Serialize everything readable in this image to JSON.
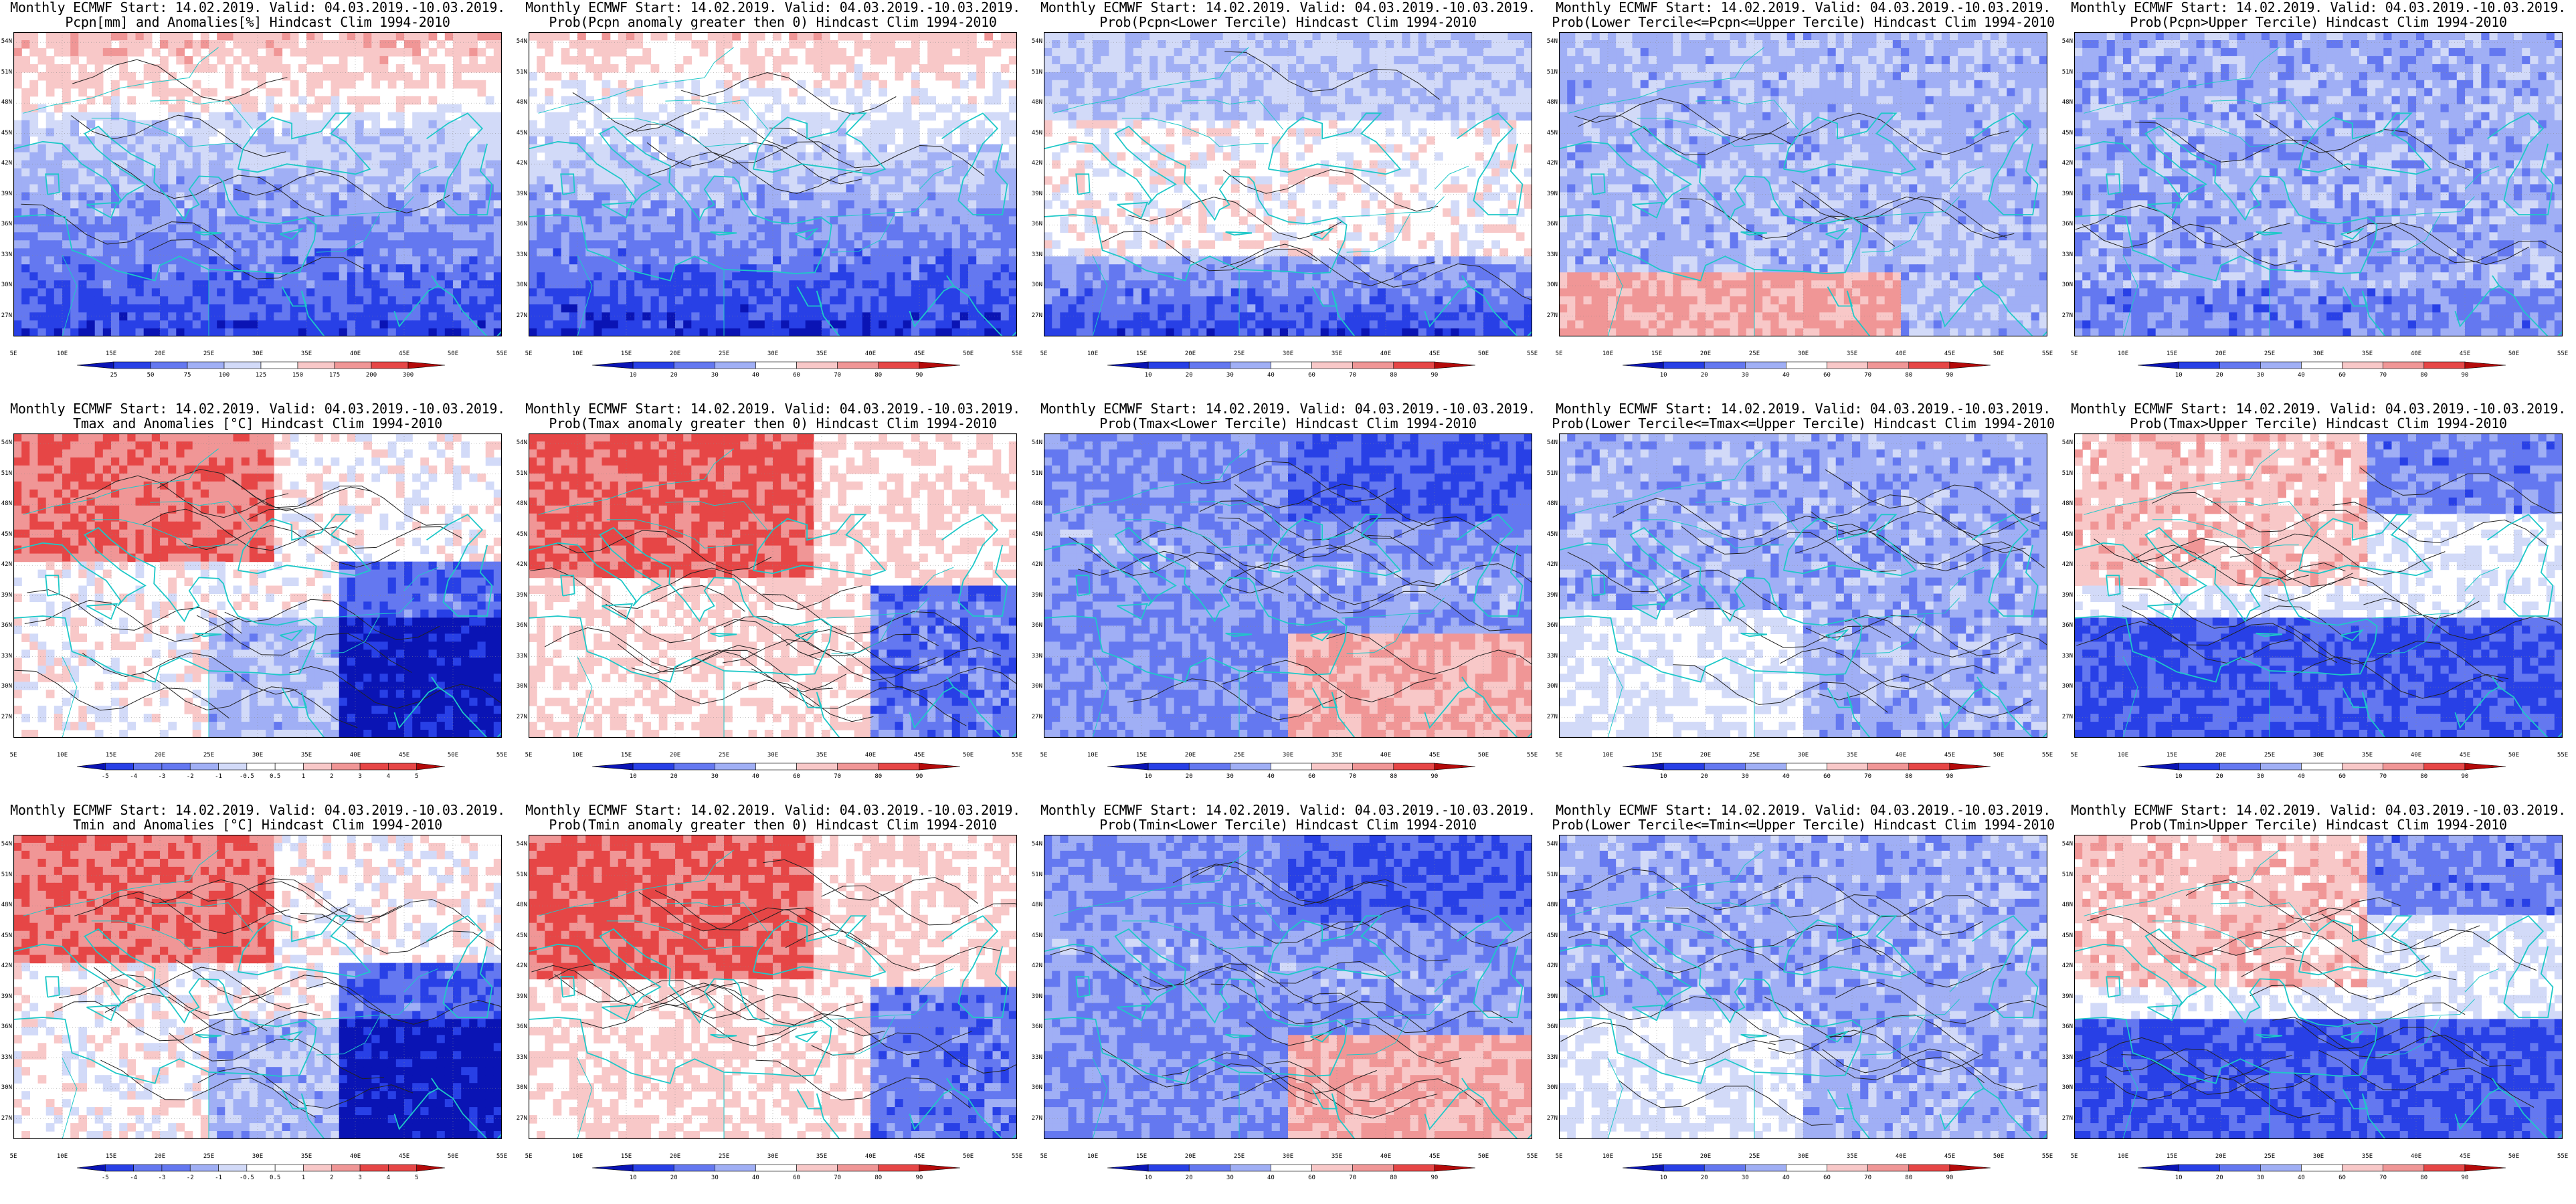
{
  "grid": {
    "x_min": 5,
    "x_max": 55,
    "y_min": 25,
    "y_max": 55,
    "lon_labels": [
      "5E",
      "10E",
      "15E",
      "20E",
      "25E",
      "30E",
      "35E",
      "40E",
      "45E",
      "50E",
      "55E"
    ],
    "lat_labels": [
      "54N",
      "51N",
      "48N",
      "45N",
      "42N",
      "39N",
      "36N",
      "33N",
      "30N",
      "27N"
    ],
    "lat_values": [
      54,
      51,
      48,
      45,
      42,
      39,
      36,
      33,
      30,
      27
    ],
    "lon_values": [
      5,
      10,
      15,
      20,
      25,
      30,
      35,
      40,
      45,
      50,
      55
    ]
  },
  "colors": {
    "coast": "#1ec8c8",
    "dark_blue": "#0a14b4",
    "blue": "#2840e6",
    "mid_blue": "#6478f0",
    "light_blue": "#a0aff5",
    "pale_blue": "#d2daf8",
    "pale_red": "#f8c8c8",
    "light_red": "#f09696",
    "red": "#e64646",
    "dark_red": "#b40a0a"
  },
  "scales": {
    "pcpn_anom": [
      "25",
      "50",
      "75",
      "100",
      "125",
      "150",
      "175",
      "200",
      "300"
    ],
    "prob": [
      "10",
      "20",
      "30",
      "40",
      "60",
      "70",
      "80",
      "90"
    ],
    "temp_anom": [
      "-5",
      "-4",
      "-3",
      "-2",
      "-1",
      "-0.5",
      "0.5",
      "1",
      "2",
      "3",
      "4",
      "5"
    ]
  },
  "panels": [
    {
      "title1": "Monthly ECMWF Start: 14.02.2019. Valid: 04.03.2019.-10.03.2019.",
      "title2": "Pcpn[mm] and Anomalies[%] Hindcast Clim 1994-2010",
      "scale": "pcpn_anom",
      "scheme": "pcpn_anom"
    },
    {
      "title1": "Monthly ECMWF Start: 14.02.2019. Valid: 04.03.2019.-10.03.2019.",
      "title2": "Prob(Pcpn anomaly greater then 0) Hindcast Clim 1994-2010",
      "scale": "prob",
      "scheme": "pcpn_pos"
    },
    {
      "title1": "Monthly ECMWF Start: 14.02.2019. Valid: 04.03.2019.-10.03.2019.",
      "title2": "Prob(Pcpn<Lower Tercile) Hindcast Clim 1994-2010",
      "scale": "prob",
      "scheme": "pcpn_low"
    },
    {
      "title1": "Monthly ECMWF Start: 14.02.2019. Valid: 04.03.2019.-10.03.2019.",
      "title2": "Prob(Lower Tercile<=Pcpn<=Upper Tercile) Hindcast Clim 1994-2010",
      "scale": "prob",
      "scheme": "pcpn_mid"
    },
    {
      "title1": "Monthly ECMWF Start: 14.02.2019. Valid: 04.03.2019.-10.03.2019.",
      "title2": "Prob(Pcpn>Upper Tercile) Hindcast Clim 1994-2010",
      "scale": "prob",
      "scheme": "pcpn_up"
    },
    {
      "title1": "Monthly ECMWF Start: 14.02.2019. Valid: 04.03.2019.-10.03.2019.",
      "title2": "Tmax and Anomalies [°C] Hindcast Clim 1994-2010",
      "scale": "temp_anom",
      "scheme": "t_anom"
    },
    {
      "title1": "Monthly ECMWF Start: 14.02.2019. Valid: 04.03.2019.-10.03.2019.",
      "title2": "Prob(Tmax anomaly greater then 0) Hindcast Clim 1994-2010",
      "scale": "prob",
      "scheme": "t_pos"
    },
    {
      "title1": "Monthly ECMWF Start: 14.02.2019. Valid: 04.03.2019.-10.03.2019.",
      "title2": "Prob(Tmax<Lower Tercile) Hindcast Clim 1994-2010",
      "scale": "prob",
      "scheme": "t_low"
    },
    {
      "title1": "Monthly ECMWF Start: 14.02.2019. Valid: 04.03.2019.-10.03.2019.",
      "title2": "Prob(Lower Tercile<=Tmax<=Upper Tercile) Hindcast Clim 1994-2010",
      "scale": "prob",
      "scheme": "t_mid"
    },
    {
      "title1": "Monthly ECMWF Start: 14.02.2019. Valid: 04.03.2019.-10.03.2019.",
      "title2": "Prob(Tmax>Upper Tercile) Hindcast Clim 1994-2010",
      "scale": "prob",
      "scheme": "t_up"
    },
    {
      "title1": "Monthly ECMWF Start: 14.02.2019. Valid: 04.03.2019.-10.03.2019.",
      "title2": "Tmin and Anomalies [°C] Hindcast Clim 1994-2010",
      "scale": "temp_anom",
      "scheme": "t_anom"
    },
    {
      "title1": "Monthly ECMWF Start: 14.02.2019. Valid: 04.03.2019.-10.03.2019.",
      "title2": "Prob(Tmin anomaly greater then 0) Hindcast Clim 1994-2010",
      "scale": "prob",
      "scheme": "t_pos"
    },
    {
      "title1": "Monthly ECMWF Start: 14.02.2019. Valid: 04.03.2019.-10.03.2019.",
      "title2": "Prob(Tmin<Lower Tercile) Hindcast Clim 1994-2010",
      "scale": "prob",
      "scheme": "t_low"
    },
    {
      "title1": "Monthly ECMWF Start: 14.02.2019. Valid: 04.03.2019.-10.03.2019.",
      "title2": "Prob(Lower Tercile<=Tmin<=Upper Tercile) Hindcast Clim 1994-2010",
      "scale": "prob",
      "scheme": "t_mid"
    },
    {
      "title1": "Monthly ECMWF Start: 14.02.2019. Valid: 04.03.2019.-10.03.2019.",
      "title2": "Prob(Tmin>Upper Tercile) Hindcast Clim 1994-2010",
      "scale": "prob",
      "scheme": "t_up"
    }
  ]
}
